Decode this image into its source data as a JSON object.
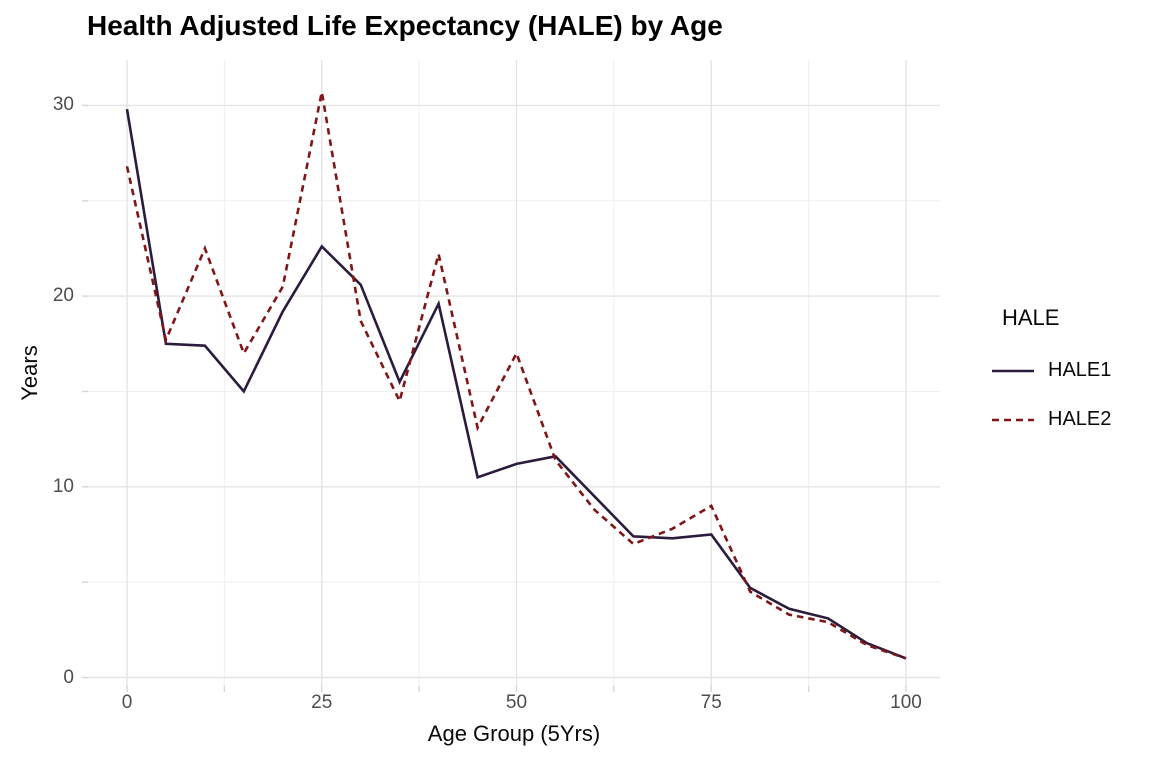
{
  "chart_data": {
    "type": "line",
    "title": "Health Adjusted Life Expectancy (HALE) by Age",
    "xlabel": "Age Group (5Yrs)",
    "ylabel": "Years",
    "x": [
      0,
      5,
      10,
      15,
      20,
      25,
      30,
      35,
      40,
      45,
      50,
      55,
      60,
      65,
      70,
      75,
      80,
      85,
      90,
      95,
      100
    ],
    "series": [
      {
        "name": "HALE1",
        "linetype": "solid",
        "color": "#2B1B3D",
        "values": [
          29.8,
          17.5,
          17.4,
          15.0,
          19.2,
          22.6,
          20.6,
          15.5,
          19.6,
          10.5,
          11.2,
          11.6,
          9.5,
          7.4,
          7.3,
          7.5,
          4.7,
          3.6,
          3.1,
          1.8,
          1.0
        ]
      },
      {
        "name": "HALE2",
        "linetype": "dashed",
        "color": "#801518",
        "values": [
          26.8,
          17.7,
          22.5,
          17.0,
          20.5,
          30.7,
          18.7,
          14.5,
          22.2,
          13.1,
          17.0,
          11.4,
          8.8,
          7.0,
          7.8,
          9.0,
          4.5,
          3.3,
          2.9,
          1.7,
          1.0
        ]
      }
    ],
    "x_tick_labels": [
      0,
      25,
      50,
      75,
      100
    ],
    "y_tick_labels": [
      0,
      10,
      20,
      30
    ],
    "x_minor_ticks": [
      12.5,
      37.5,
      62.5,
      87.5
    ],
    "y_minor_ticks": [
      5,
      15,
      25
    ],
    "xlim": [
      0,
      100
    ],
    "ylim": [
      0,
      31
    ],
    "grid": true,
    "legend": {
      "title": "HALE",
      "position": "right"
    }
  },
  "colors": {
    "grid_major": "#E4E4E4",
    "grid_minor": "#EFEFEF",
    "tick": "#D6D6D6",
    "tick_label": "#4D4D4D",
    "text": "#0A0A0A",
    "background": "#FFFFFF"
  }
}
